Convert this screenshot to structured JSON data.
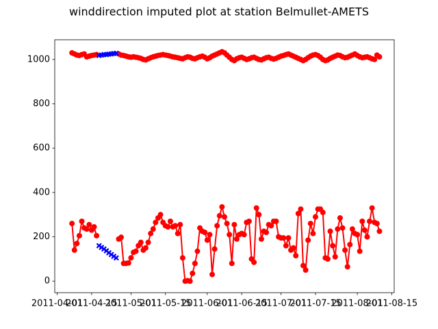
{
  "chart_data": {
    "type": "line",
    "title": "winddirection imputed plot at station Belmullet-AMETS",
    "x": [
      "2011-04-07",
      "2011-04-08",
      "2011-04-09",
      "2011-04-10",
      "2011-04-11",
      "2011-04-12",
      "2011-04-13",
      "2011-04-14",
      "2011-04-15",
      "2011-04-16",
      "2011-04-17",
      "2011-04-18",
      "2011-04-19",
      "2011-04-20",
      "2011-04-21",
      "2011-04-22",
      "2011-04-23",
      "2011-04-24",
      "2011-04-25",
      "2011-04-26",
      "2011-04-27",
      "2011-04-28",
      "2011-04-29",
      "2011-04-30",
      "2011-05-01",
      "2011-05-02",
      "2011-05-03",
      "2011-05-04",
      "2011-05-05",
      "2011-05-06",
      "2011-05-07",
      "2011-05-08",
      "2011-05-09",
      "2011-05-10",
      "2011-05-11",
      "2011-05-12",
      "2011-05-13",
      "2011-05-14",
      "2011-05-15",
      "2011-05-16",
      "2011-05-17",
      "2011-05-18",
      "2011-05-19",
      "2011-05-20",
      "2011-05-21",
      "2011-05-22",
      "2011-05-23",
      "2011-05-24",
      "2011-05-25",
      "2011-05-26",
      "2011-05-27",
      "2011-05-28",
      "2011-05-29",
      "2011-05-30",
      "2011-05-31",
      "2011-06-01",
      "2011-06-02",
      "2011-06-03",
      "2011-06-04",
      "2011-06-05",
      "2011-06-06",
      "2011-06-07",
      "2011-06-08",
      "2011-06-09",
      "2011-06-10",
      "2011-06-11",
      "2011-06-12",
      "2011-06-13",
      "2011-06-14",
      "2011-06-15",
      "2011-06-16",
      "2011-06-17",
      "2011-06-18",
      "2011-06-19",
      "2011-06-20",
      "2011-06-21",
      "2011-06-22",
      "2011-06-23",
      "2011-06-24",
      "2011-06-25",
      "2011-06-26",
      "2011-06-27",
      "2011-06-28",
      "2011-06-29",
      "2011-06-30",
      "2011-07-01",
      "2011-07-02",
      "2011-07-03",
      "2011-07-04",
      "2011-07-05",
      "2011-07-06",
      "2011-07-07",
      "2011-07-08",
      "2011-07-09",
      "2011-07-10",
      "2011-07-11",
      "2011-07-12",
      "2011-07-13",
      "2011-07-14",
      "2011-07-15",
      "2011-07-16",
      "2011-07-17",
      "2011-07-18",
      "2011-07-19",
      "2011-07-20",
      "2011-07-21",
      "2011-07-22",
      "2011-07-23",
      "2011-07-24",
      "2011-07-25",
      "2011-07-26",
      "2011-07-27",
      "2011-07-28",
      "2011-07-29",
      "2011-07-30",
      "2011-07-31",
      "2011-08-01",
      "2011-08-02",
      "2011-08-03",
      "2011-08-04",
      "2011-08-05",
      "2011-08-06",
      "2011-08-07",
      "2011-08-08",
      "2011-08-09",
      "2011-08-10"
    ],
    "series": [
      {
        "color": "#ff0000",
        "marker": "circle",
        "values": [
          1030,
          1025,
          1020,
          1018,
          1022,
          1025,
          1012,
          1015,
          1018,
          1020,
          1022,
          null,
          null,
          null,
          null,
          null,
          null,
          null,
          null,
          1025,
          1020,
          1018,
          1015,
          1012,
          1010,
          1012,
          1010,
          1008,
          1005,
          1000,
          998,
          1003,
          1008,
          1012,
          1015,
          1018,
          1020,
          1022,
          1020,
          1018,
          1015,
          1012,
          1010,
          1008,
          1005,
          1003,
          1008,
          1012,
          1010,
          1005,
          1003,
          1008,
          1012,
          1015,
          1010,
          1003,
          1008,
          1015,
          1020,
          1025,
          1030,
          1035,
          1030,
          1020,
          1010,
          1000,
          995,
          1003,
          1008,
          1010,
          1005,
          1000,
          1003,
          1008,
          1010,
          1005,
          1000,
          998,
          1003,
          1008,
          1010,
          1005,
          1002,
          1005,
          1010,
          1015,
          1018,
          1022,
          1025,
          1020,
          1015,
          1010,
          1005,
          1000,
          995,
          1000,
          1008,
          1015,
          1020,
          1022,
          1018,
          1010,
          1000,
          995,
          998,
          1005,
          1010,
          1015,
          1020,
          1018,
          1012,
          1008,
          1010,
          1015,
          1020,
          1025,
          1018,
          1012,
          1008,
          1010,
          1012,
          1008,
          1003,
          1000,
          1020,
          1012
        ]
      },
      {
        "color": "#0000ff",
        "marker": "x",
        "values": [
          null,
          null,
          null,
          null,
          null,
          null,
          null,
          null,
          null,
          null,
          null,
          1018,
          1020,
          1022,
          1022,
          1024,
          1025,
          1027,
          1028,
          null,
          null,
          null,
          null,
          null,
          null,
          null,
          null,
          null,
          null,
          null,
          null,
          null,
          null,
          null,
          null,
          null,
          null,
          null,
          null,
          null,
          null,
          null,
          null,
          null,
          null,
          null,
          null,
          null,
          null,
          null,
          null,
          null,
          null,
          null,
          null,
          null,
          null,
          null,
          null,
          null,
          null,
          null,
          null,
          null,
          null,
          null,
          null,
          null,
          null,
          null,
          null,
          null,
          null,
          null,
          null,
          null,
          null,
          null,
          null,
          null,
          null,
          null,
          null,
          null,
          null,
          null,
          null,
          null,
          null,
          null,
          null,
          null,
          null,
          null,
          null,
          null,
          null,
          null,
          null,
          null,
          null,
          null,
          null,
          null,
          null,
          null,
          null,
          null,
          null,
          null,
          null,
          null,
          null,
          null,
          null,
          null,
          null,
          null,
          null,
          null,
          null,
          null,
          null,
          null,
          null,
          null
        ]
      },
      {
        "color": "#ff0000",
        "marker": "circle",
        "values": [
          260,
          140,
          170,
          205,
          270,
          240,
          235,
          255,
          230,
          245,
          205,
          null,
          null,
          null,
          null,
          null,
          null,
          null,
          null,
          190,
          198,
          80,
          80,
          82,
          105,
          130,
          135,
          160,
          175,
          140,
          150,
          175,
          215,
          235,
          265,
          285,
          300,
          265,
          250,
          245,
          270,
          245,
          250,
          215,
          255,
          105,
          0,
          2,
          0,
          35,
          80,
          135,
          240,
          225,
          220,
          185,
          210,
          30,
          145,
          250,
          295,
          335,
          290,
          260,
          210,
          80,
          255,
          190,
          210,
          215,
          210,
          265,
          270,
          100,
          85,
          330,
          300,
          190,
          225,
          220,
          255,
          250,
          270,
          270,
          200,
          195,
          195,
          160,
          195,
          140,
          150,
          115,
          305,
          325,
          70,
          50,
          185,
          260,
          215,
          290,
          325,
          325,
          310,
          105,
          100,
          225,
          160,
          110,
          235,
          285,
          240,
          140,
          65,
          165,
          235,
          215,
          210,
          135,
          270,
          230,
          200,
          270,
          330,
          265,
          260,
          225
        ]
      },
      {
        "color": "#0000ff",
        "marker": "x",
        "values": [
          null,
          null,
          null,
          null,
          null,
          null,
          null,
          null,
          null,
          null,
          null,
          160,
          152,
          145,
          137,
          128,
          120,
          112,
          105,
          null,
          null,
          null,
          null,
          null,
          null,
          null,
          null,
          null,
          null,
          null,
          null,
          null,
          null,
          null,
          null,
          null,
          null,
          null,
          null,
          null,
          null,
          null,
          null,
          null,
          null,
          null,
          null,
          null,
          null,
          null,
          null,
          null,
          null,
          null,
          null,
          null,
          null,
          null,
          null,
          null,
          null,
          null,
          null,
          null,
          null,
          null,
          null,
          null,
          null,
          null,
          null,
          null,
          null,
          null,
          null,
          null,
          null,
          null,
          null,
          null,
          null,
          null,
          null,
          null,
          null,
          null,
          null,
          null,
          null,
          null,
          null,
          null,
          null,
          null,
          null,
          null,
          null,
          null,
          null,
          null,
          null,
          null,
          null,
          null,
          null,
          null,
          null,
          null,
          null,
          null,
          null,
          null,
          null,
          null,
          null,
          null,
          null,
          null,
          null,
          null,
          null,
          null,
          null,
          null,
          null,
          null
        ]
      }
    ],
    "xlim": [
      "2011-03-31",
      "2011-08-16"
    ],
    "xticks": [
      "2011-04-01",
      "2011-04-15",
      "2011-05-01",
      "2011-05-15",
      "2011-06-01",
      "2011-06-15",
      "2011-07-01",
      "2011-07-15",
      "2011-08-01",
      "2011-08-15"
    ],
    "ylim": [
      -52,
      1089
    ],
    "yticks": [
      0,
      200,
      400,
      600,
      800,
      1000
    ],
    "grid": false
  }
}
